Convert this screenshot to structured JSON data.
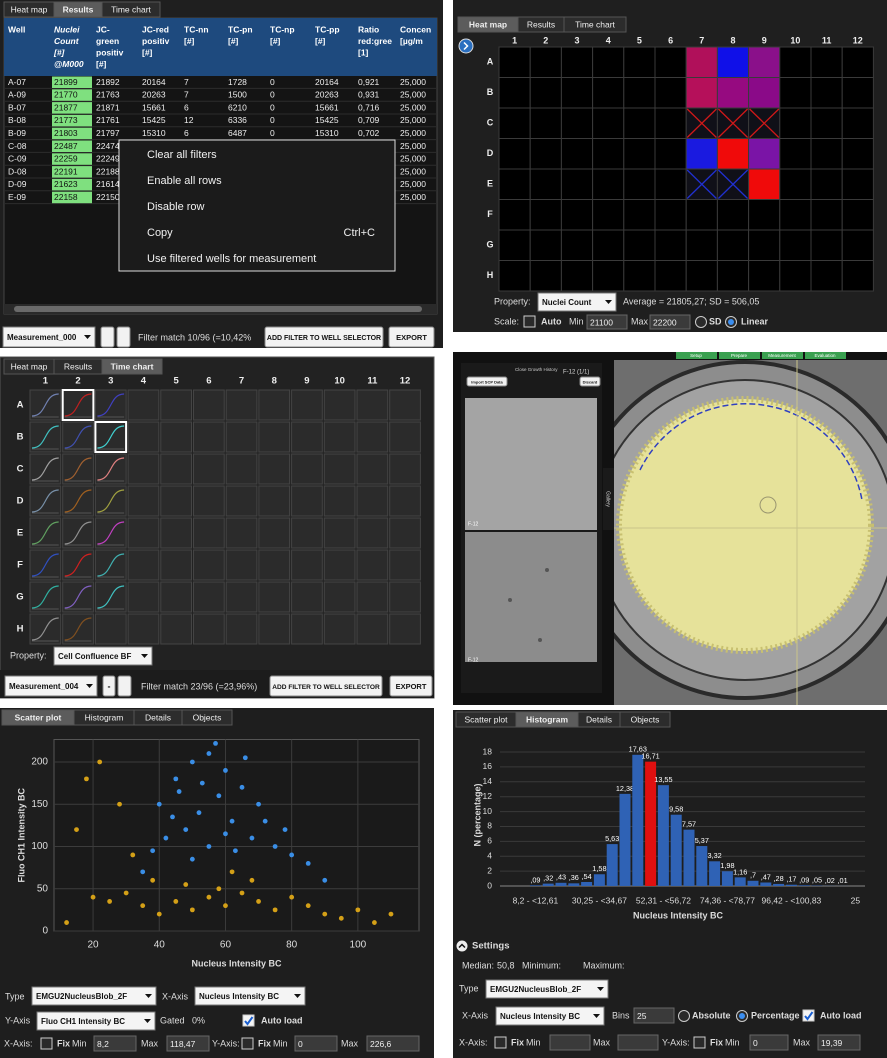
{
  "results": {
    "tabs": [
      "Heat map",
      "Results",
      "Time chart"
    ],
    "active_tab": 1,
    "headers": [
      [
        "Well"
      ],
      [
        "Nuclei",
        "Count",
        "[#]",
        "@M000"
      ],
      [
        "JC-",
        "green",
        "positiv",
        "[#]"
      ],
      [
        "JC-red",
        "positiv",
        "[#]"
      ],
      [
        "TC-nn",
        "[#]"
      ],
      [
        "TC-pn",
        "[#]"
      ],
      [
        "TC-np",
        "[#]"
      ],
      [
        "TC-pp",
        "[#]"
      ],
      [
        "Ratio",
        "red:gree",
        "[1]"
      ],
      [
        "Concen",
        "[µg/m"
      ]
    ],
    "rows": [
      [
        "A-07",
        "21899",
        "21892",
        "20164",
        "7",
        "1728",
        "0",
        "20164",
        "0,921",
        "25,000"
      ],
      [
        "A-09",
        "21770",
        "21763",
        "20263",
        "7",
        "1500",
        "0",
        "20263",
        "0,931",
        "25,000"
      ],
      [
        "B-07",
        "21877",
        "21871",
        "15661",
        "6",
        "6210",
        "0",
        "15661",
        "0,716",
        "25,000"
      ],
      [
        "B-08",
        "21773",
        "21761",
        "15425",
        "12",
        "6336",
        "0",
        "15425",
        "0,709",
        "25,000"
      ],
      [
        "B-09",
        "21803",
        "21797",
        "15310",
        "6",
        "6487",
        "0",
        "15310",
        "0,702",
        "25,000"
      ],
      [
        "C-08",
        "22487",
        "22474",
        null,
        null,
        null,
        null,
        null,
        null,
        "25,000"
      ],
      [
        "C-09",
        "22259",
        "22249",
        null,
        null,
        null,
        null,
        null,
        null,
        "25,000"
      ],
      [
        "D-08",
        "22191",
        "22188",
        null,
        null,
        null,
        null,
        null,
        null,
        "25,000"
      ],
      [
        "D-09",
        "21623",
        "21614",
        null,
        null,
        null,
        null,
        null,
        null,
        "25,000"
      ],
      [
        "E-09",
        "22158",
        "22150",
        null,
        null,
        null,
        null,
        null,
        null,
        "25,000"
      ]
    ],
    "menu": [
      {
        "label": "Clear all filters"
      },
      {
        "label": "Enable all rows"
      },
      {
        "label": "Disable row"
      },
      {
        "label": "Copy",
        "shortcut": "Ctrl+C"
      },
      {
        "label": "Use filtered wells for measurement"
      }
    ],
    "measurement": "Measurement_000",
    "filter_text": "Filter match 10/96 (=10,42%",
    "add_filter": "ADD FILTER TO WELL SELECTOR",
    "export": "EXPORT"
  },
  "heatmap": {
    "tabs": [
      "Heat map",
      "Results",
      "Time chart"
    ],
    "active_tab": 0,
    "columns": [
      "1",
      "2",
      "3",
      "4",
      "5",
      "6",
      "7",
      "8",
      "9",
      "10",
      "11",
      "12"
    ],
    "rows": [
      "A",
      "B",
      "C",
      "D",
      "E",
      "F",
      "G",
      "H"
    ],
    "cells": [
      [
        null,
        null,
        null,
        null,
        null,
        null,
        "#b0105a",
        "#1010e8",
        "#8a108a",
        null,
        null,
        null
      ],
      [
        null,
        null,
        null,
        null,
        null,
        null,
        "#b5105a",
        "#960a80",
        "#8a0a88",
        null,
        null,
        null
      ],
      [
        null,
        null,
        null,
        null,
        null,
        null,
        {
          "crossed": "#d01818"
        },
        {
          "crossed": "#d01818"
        },
        {
          "crossed": "#d01818"
        },
        null,
        null,
        null
      ],
      [
        null,
        null,
        null,
        null,
        null,
        null,
        "#1a1ae0",
        "#f00a0a",
        "#7a14a6",
        null,
        null,
        null
      ],
      [
        null,
        null,
        null,
        null,
        null,
        null,
        {
          "crossed": "#2030d0"
        },
        {
          "crossed": "#2030d0"
        },
        "#f00a0a",
        null,
        null,
        null
      ],
      [
        null,
        null,
        null,
        null,
        null,
        null,
        null,
        null,
        null,
        null,
        null,
        null
      ],
      [
        null,
        null,
        null,
        null,
        null,
        null,
        null,
        null,
        null,
        null,
        null,
        null
      ],
      [
        null,
        null,
        null,
        null,
        null,
        null,
        null,
        null,
        null,
        null,
        null,
        null
      ]
    ],
    "property_label": "Property:",
    "property": "Nuclei Count",
    "stats": "Average = 21805,27; SD = 506,05",
    "scale_label": "Scale:",
    "auto": "Auto",
    "min_label": "Min",
    "min": "21100",
    "max_label": "Max",
    "max": "22200",
    "sd": "SD",
    "linear": "Linear"
  },
  "time_chart": {
    "tabs": [
      "Heat map",
      "Results",
      "Time chart"
    ],
    "active_tab": 2,
    "columns": [
      "1",
      "2",
      "3",
      "4",
      "5",
      "6",
      "7",
      "8",
      "9",
      "10",
      "11",
      "12"
    ],
    "rows": [
      "A",
      "B",
      "C",
      "D",
      "E",
      "F",
      "G",
      "H"
    ],
    "curves": [
      [
        "#7080b0",
        {
          "color": "#c02020",
          "selected": true
        },
        "#4040c0"
      ],
      [
        "#40c0c0",
        "#4050b0",
        {
          "color": "#40d0d0",
          "selected": true
        }
      ],
      [
        "#a0a0a0",
        "#a06030",
        "#e08080"
      ],
      [
        "#7890a8",
        "#a06020",
        "#a0a040"
      ],
      [
        "#60a060",
        "#909090",
        "#c040c0"
      ],
      [
        "#3050c0",
        "#d02020",
        "#40b0b0"
      ],
      [
        "#30b0a0",
        "#8060c0",
        "#40c0c0"
      ],
      [
        "#909090",
        "#805020",
        null
      ]
    ],
    "property_label": "Property:",
    "property": "Cell Confluence BF",
    "measurement": "Measurement_004",
    "minus": "-",
    "filter_text": "Filter match 23/96 (=23,96%)",
    "add_filter": "ADD FILTER TO WELL SELECTOR",
    "export": "EXPORT"
  },
  "image_panel": {
    "steps": [
      "Setup",
      "Prepare",
      "Measurement",
      "Evaluation"
    ],
    "history": "Close Growth History",
    "well": "F-12 (1/1)",
    "import": "Import SCP Data",
    "discard": "Discard",
    "thumb_label": "F-12",
    "gallery": "Gallery"
  },
  "chart_data": [
    {
      "type": "scatter",
      "tabs": [
        "Scatter plot",
        "Histogram",
        "Details",
        "Objects"
      ],
      "active_tab": 0,
      "xlabel": "Nucleus Intensity BC",
      "ylabel": "Fluo CH1 Intensity BC",
      "xlim": [
        8.2,
        118.47
      ],
      "ylim": [
        0,
        226.6
      ],
      "xticks": [
        20,
        40,
        60,
        80,
        100
      ],
      "yticks": [
        0,
        50,
        100,
        150,
        200
      ],
      "grid": true,
      "series": [
        {
          "color": "#3a8ee6",
          "x": [
            40,
            45,
            50,
            55,
            60,
            65,
            70,
            48,
            52,
            58,
            62,
            68,
            75,
            80,
            42,
            38,
            55,
            60,
            72,
            66,
            57,
            46,
            50,
            85,
            90,
            35,
            63,
            78,
            44,
            53
          ],
          "values": [
            150,
            180,
            200,
            210,
            190,
            170,
            150,
            120,
            140,
            160,
            130,
            110,
            100,
            90,
            110,
            95,
            100,
            115,
            130,
            205,
            222,
            165,
            85,
            80,
            60,
            70,
            95,
            120,
            135,
            175
          ]
        },
        {
          "color": "#d4a017",
          "x": [
            20,
            25,
            30,
            35,
            40,
            45,
            50,
            55,
            60,
            65,
            70,
            75,
            80,
            85,
            90,
            95,
            100,
            105,
            15,
            18,
            22,
            28,
            32,
            38,
            48,
            58,
            68,
            62,
            110,
            12
          ],
          "values": [
            40,
            35,
            45,
            30,
            20,
            35,
            25,
            40,
            30,
            45,
            35,
            25,
            40,
            30,
            20,
            15,
            25,
            10,
            120,
            180,
            200,
            150,
            90,
            60,
            55,
            50,
            60,
            70,
            20,
            10
          ]
        }
      ],
      "controls": {
        "type_label": "Type",
        "type": "EMGU2NucleusBlob_2F",
        "x_label": "X-Axis",
        "x": "Nucleus Intensity BC",
        "y_label": "Y-Axis",
        "y": "Fluo CH1 Intensity BC",
        "gated_label": "Gated",
        "gated": "0%",
        "auto_load": "Auto load",
        "x_fix_label": "X-Axis:",
        "fix": "Fix",
        "min_label": "Min",
        "x_min": "8,2",
        "max_label": "Max",
        "x_max": "118,47",
        "y_fix_label": "Y-Axis:",
        "y_min": "0",
        "y_max": "226,6"
      }
    },
    {
      "type": "bar",
      "tabs": [
        "Scatter plot",
        "Histogram",
        "Details",
        "Objects"
      ],
      "active_tab": 1,
      "xlabel": "Nucleus Intensity BC",
      "ylabel": "N (percentage)",
      "categories": [
        "8,2 - <12,61",
        null,
        null,
        null,
        null,
        "30,25 - <34,67",
        null,
        null,
        null,
        null,
        "52,31 - <56,72",
        null,
        null,
        null,
        null,
        "74,36 - <78,77",
        null,
        null,
        null,
        null,
        "96,42 - <100,83",
        null,
        null,
        null,
        null
      ],
      "end_label": "25",
      "values": [
        0.09,
        0.32,
        0.43,
        0.36,
        0.54,
        1.58,
        5.63,
        12.38,
        17.63,
        16.71,
        13.55,
        9.58,
        7.57,
        5.37,
        3.32,
        1.98,
        1.16,
        0.7,
        0.47,
        0.28,
        0.17,
        0.09,
        0.05,
        0.02,
        0.01
      ],
      "value_labels": [
        ",09",
        ",32",
        ",43",
        ",36",
        ",54",
        "1,58",
        "5,63",
        "12,38",
        "17,63",
        "16,71",
        "13,55",
        "9,58",
        "7,57",
        "5,37",
        "3,32",
        "1,98",
        "1,16",
        ",7",
        ",47",
        ",28",
        ",17",
        ",09",
        ",05",
        ",02",
        ",01"
      ],
      "color": "#2f62b5",
      "highlight_index": 9,
      "highlight_color": "#e01010",
      "ylim": [
        0,
        19.39
      ],
      "yticks": [
        0,
        2,
        4,
        6,
        8,
        10,
        12,
        14,
        16,
        18
      ],
      "grid": true,
      "settings": {
        "title": "Settings",
        "median_label": "Median:",
        "median": "50,8",
        "minimum_label": "Minimum:",
        "maximum_label": "Maximum:",
        "type_label": "Type",
        "type": "EMGU2NucleusBlob_2F",
        "x_label": "X-Axis",
        "x": "Nucleus Intensity BC",
        "bins_label": "Bins",
        "bins": "25",
        "absolute": "Absolute",
        "percentage": "Percentage",
        "auto_load": "Auto load",
        "x_fix_label": "X-Axis:",
        "fix": "Fix",
        "min_label": "Min",
        "max_label": "Max",
        "y_fix_label": "Y-Axis:",
        "y_min": "0",
        "y_max": "19,39"
      }
    }
  ]
}
